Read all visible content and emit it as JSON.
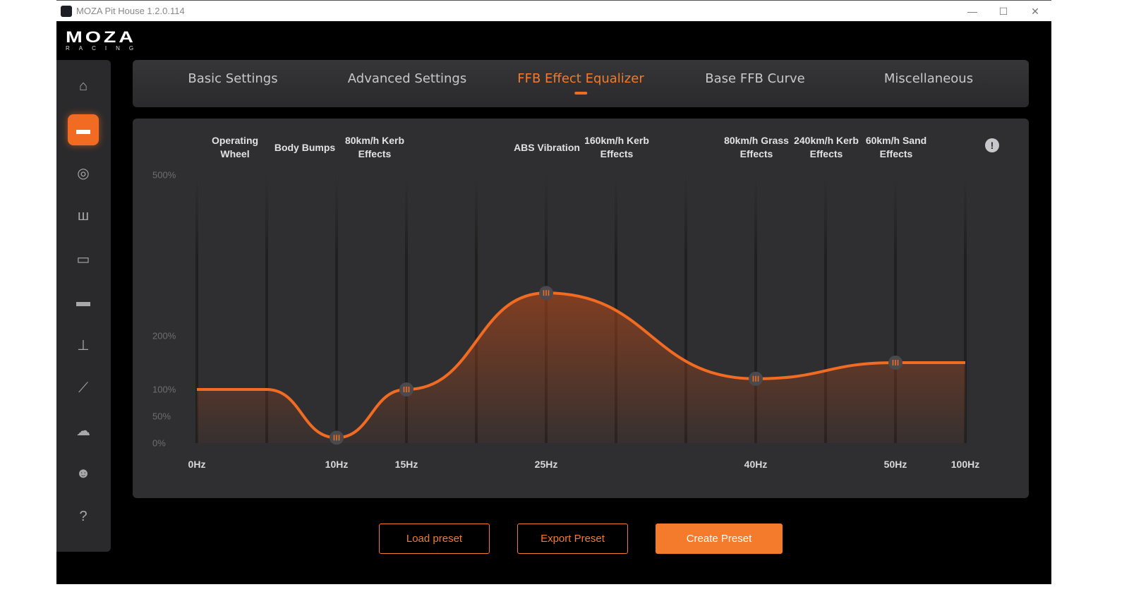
{
  "window": {
    "title": "MOZA Pit House 1.2.0.114",
    "minimize": "—",
    "maximize": "☐",
    "close": "✕"
  },
  "logo": {
    "brand": "MOZA",
    "sub": "RACING"
  },
  "sidebar": {
    "items": [
      {
        "icon": "home-icon",
        "glyph": "⌂"
      },
      {
        "icon": "wheelbase-icon",
        "glyph": "▬",
        "active": true
      },
      {
        "icon": "steering-wheel-icon",
        "glyph": "◎"
      },
      {
        "icon": "pedals-icon",
        "glyph": "ш"
      },
      {
        "icon": "dashboard-icon",
        "glyph": "▭"
      },
      {
        "icon": "rpm-light-icon",
        "glyph": "▬"
      },
      {
        "icon": "shifter-icon",
        "glyph": "⊥"
      },
      {
        "icon": "handbrake-icon",
        "glyph": "⟋"
      },
      {
        "icon": "cloud-upload-icon",
        "glyph": "☁"
      },
      {
        "icon": "user-icon",
        "glyph": "☻"
      },
      {
        "icon": "qa-icon",
        "glyph": "?"
      }
    ]
  },
  "tabs": [
    {
      "label": "Basic Settings"
    },
    {
      "label": "Advanced Settings"
    },
    {
      "label": "FFB Effect Equalizer",
      "active": true
    },
    {
      "label": "Base FFB Curve"
    },
    {
      "label": "Miscellaneous"
    }
  ],
  "accent": "#f26b22",
  "chart_data": {
    "type": "line",
    "effect_labels": [
      [
        "Operating",
        "Wheel"
      ],
      [
        "Body Bumps"
      ],
      [
        "80km/h Kerb",
        "Effects"
      ],
      [
        "ABS Vibration"
      ],
      [
        "160km/h Kerb",
        "Effects"
      ],
      [
        "80km/h Grass",
        "Effects"
      ],
      [
        "240km/h Kerb",
        "Effects"
      ],
      [
        "60km/h Sand",
        "Effects"
      ]
    ],
    "y_ticks": [
      "500%",
      "200%",
      "100%",
      "50%",
      "0%"
    ],
    "y_tick_values": [
      500,
      200,
      100,
      50,
      0
    ],
    "ylim": [
      0,
      500
    ],
    "x_ticks": [
      "0Hz",
      "10Hz",
      "15Hz",
      "25Hz",
      "40Hz",
      "50Hz",
      "100Hz"
    ],
    "points": [
      {
        "x": "0Hz",
        "y": 100
      },
      {
        "x": "10Hz",
        "y": 10,
        "handle": true
      },
      {
        "x": "15Hz",
        "y": 100,
        "handle": true
      },
      {
        "x": "25Hz",
        "y": 280,
        "handle": true
      },
      {
        "x": "40Hz",
        "y": 120,
        "handle": true
      },
      {
        "x": "50Hz",
        "y": 150,
        "handle": true
      },
      {
        "x": "100Hz",
        "y": 150
      }
    ],
    "line_color": "#f26b22",
    "info_icon": "!"
  },
  "buttons": {
    "load": "Load preset",
    "export": "Export Preset",
    "create": "Create Preset"
  }
}
